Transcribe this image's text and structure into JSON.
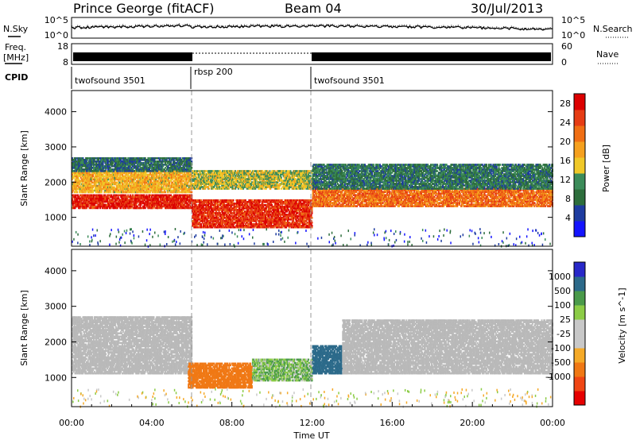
{
  "header": {
    "station": "Prince George (fitACF)",
    "beam": "Beam 04",
    "date": "30/Jul/2013"
  },
  "side_labels": {
    "nsky": "N.Sky",
    "nsearch": "N.Search",
    "freq_1": "Freq.",
    "freq_2": "[MHz]",
    "nave": "Nave",
    "cpid": "CPID"
  },
  "summary_ticks": {
    "noise_left_top": "10^5",
    "noise_left_bottom": "10^0",
    "noise_right_top": "10^5",
    "noise_right_bottom": "10^0",
    "freq_left_top": "18",
    "freq_left_bottom": "8",
    "nave_right_top": "60",
    "nave_right_bottom": "0"
  },
  "cpid_segments": [
    {
      "label": "twofsound 3501",
      "start": "00:00",
      "end": "06:00"
    },
    {
      "label": "rbsp 200",
      "start": "06:00",
      "end": "12:00"
    },
    {
      "label": "twofsound 3501",
      "start": "12:00",
      "end": "24:00"
    }
  ],
  "colors": {
    "power": [
      "#1414ff",
      "#1e3ca0",
      "#2d6e3c",
      "#3c8c5a",
      "#f0c828",
      "#f5a01e",
      "#f06e14",
      "#e63c14",
      "#dc0000"
    ],
    "velocity": [
      "#e60000",
      "#f04614",
      "#f07814",
      "#f5aa28",
      "#c8c8c8",
      "#c8c8c8",
      "#8ccc46",
      "#4a9a4a",
      "#2c6a8a",
      "#2828c8"
    ],
    "ground_scatter": "#b9b9b9"
  },
  "chart_data": [
    {
      "type": "heatmap",
      "name": "power",
      "ylabel": "Slant Range [km]",
      "xlim": [
        "00:00",
        "24:00"
      ],
      "ylim": [
        180,
        4600
      ],
      "yticks": [
        1000,
        2000,
        3000,
        4000
      ],
      "colorbar_label": "Power [dB]",
      "colorbar_ticks": [
        4,
        8,
        12,
        16,
        20,
        24,
        28
      ],
      "colorbar_range": [
        0,
        30
      ],
      "bands": [
        {
          "start": 0.0,
          "end": 6.0,
          "range_lo": 1250,
          "range_hi": 1650,
          "value": 27
        },
        {
          "start": 0.0,
          "end": 6.0,
          "range_lo": 1700,
          "range_hi": 2300,
          "value": 17
        },
        {
          "start": 0.0,
          "end": 6.0,
          "range_lo": 2300,
          "range_hi": 2700,
          "value": 8
        },
        {
          "start": 6.0,
          "end": 12.0,
          "range_lo": 700,
          "range_hi": 1500,
          "value": 26
        },
        {
          "start": 6.0,
          "end": 12.0,
          "range_lo": 1800,
          "range_hi": 2300,
          "value": 14
        },
        {
          "start": 12.0,
          "end": 24.0,
          "range_lo": 1300,
          "range_hi": 1800,
          "value": 22
        },
        {
          "start": 12.0,
          "end": 24.0,
          "range_lo": 1800,
          "range_hi": 2500,
          "value": 9
        }
      ]
    },
    {
      "type": "heatmap",
      "name": "velocity",
      "ylabel": "Slant Range [km]",
      "xlabel": "Time UT",
      "xlim": [
        "00:00",
        "24:00"
      ],
      "ylim": [
        180,
        4600
      ],
      "yticks": [
        1000,
        2000,
        3000,
        4000
      ],
      "xticks": [
        "00:00",
        "04:00",
        "08:00",
        "12:00",
        "16:00",
        "20:00",
        "00:00"
      ],
      "colorbar_label": "Velocity [m s^-1]",
      "colorbar_ticks": [
        "1000",
        "500",
        "100",
        "25",
        "-25",
        "-100",
        "-500",
        "-1000"
      ],
      "bands": [
        {
          "start": 0.0,
          "end": 6.0,
          "range_lo": 1100,
          "range_hi": 2700,
          "value": "ground"
        },
        {
          "start": 5.8,
          "end": 9.0,
          "range_lo": 700,
          "range_hi": 1400,
          "value": -400
        },
        {
          "start": 9.0,
          "end": 12.0,
          "range_lo": 900,
          "range_hi": 1500,
          "value": 80
        },
        {
          "start": 12.0,
          "end": 13.5,
          "range_lo": 1100,
          "range_hi": 1900,
          "value": 800
        },
        {
          "start": 13.5,
          "end": 24.0,
          "range_lo": 1100,
          "range_hi": 2600,
          "value": "ground"
        }
      ]
    }
  ]
}
